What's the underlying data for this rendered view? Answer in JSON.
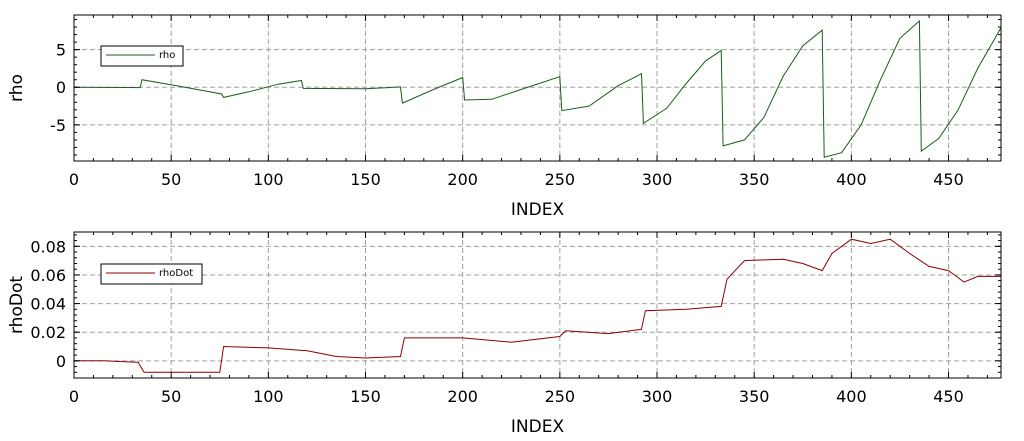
{
  "chart_data": [
    {
      "type": "line",
      "xlabel": "INDEX",
      "ylabel": "rho",
      "xlim": [
        0,
        477
      ],
      "ylim": [
        -9.8,
        9.6
      ],
      "xticks": [
        0,
        50,
        100,
        150,
        200,
        250,
        300,
        350,
        400,
        450
      ],
      "yticks": [
        -5,
        0,
        5
      ],
      "ytick_labels": [
        "-5",
        "0",
        "5"
      ],
      "grid": true,
      "legend_position": "top-left",
      "series": [
        {
          "name": "rho",
          "color": "#1a5c1a",
          "points": [
            [
              0,
              0.0
            ],
            [
              34,
              -0.05
            ],
            [
              35,
              1.0
            ],
            [
              55,
              0.1
            ],
            [
              76,
              -0.9
            ],
            [
              77,
              -1.35
            ],
            [
              90,
              -0.6
            ],
            [
              105,
              0.4
            ],
            [
              117,
              0.9
            ],
            [
              118,
              -0.15
            ],
            [
              150,
              -0.2
            ],
            [
              168,
              0.05
            ],
            [
              169,
              -2.1
            ],
            [
              185,
              -0.3
            ],
            [
              200,
              1.3
            ],
            [
              201,
              -1.7
            ],
            [
              215,
              -1.6
            ],
            [
              230,
              -0.3
            ],
            [
              250,
              1.4
            ],
            [
              251,
              -3.1
            ],
            [
              265,
              -2.5
            ],
            [
              280,
              0.2
            ],
            [
              292,
              1.8
            ],
            [
              293,
              -4.8
            ],
            [
              305,
              -2.8
            ],
            [
              315,
              0.5
            ],
            [
              325,
              3.5
            ],
            [
              333,
              4.9
            ],
            [
              334,
              -7.8
            ],
            [
              345,
              -7.0
            ],
            [
              355,
              -4.0
            ],
            [
              365,
              1.5
            ],
            [
              375,
              5.5
            ],
            [
              385,
              7.6
            ],
            [
              386,
              -9.3
            ],
            [
              395,
              -8.7
            ],
            [
              405,
              -5.0
            ],
            [
              415,
              1.0
            ],
            [
              425,
              6.5
            ],
            [
              435,
              8.8
            ],
            [
              436,
              -8.5
            ],
            [
              445,
              -6.8
            ],
            [
              455,
              -3.0
            ],
            [
              465,
              2.5
            ],
            [
              477,
              7.9
            ]
          ]
        }
      ]
    },
    {
      "type": "line",
      "xlabel": "INDEX",
      "ylabel": "rhoDot",
      "xlim": [
        0,
        477
      ],
      "ylim": [
        -0.012,
        0.09
      ],
      "xticks": [
        0,
        50,
        100,
        150,
        200,
        250,
        300,
        350,
        400,
        450
      ],
      "yticks": [
        0,
        0.02,
        0.04,
        0.06,
        0.08
      ],
      "ytick_labels": [
        "0",
        "0.02",
        "0.04",
        "0.06",
        "0.08"
      ],
      "grid": true,
      "legend_position": "top-left",
      "series": [
        {
          "name": "rhoDot",
          "color": "#8b0000",
          "points": [
            [
              0,
              0.0
            ],
            [
              15,
              0.0
            ],
            [
              33,
              -0.001
            ],
            [
              36,
              -0.008
            ],
            [
              55,
              -0.008
            ],
            [
              75,
              -0.008
            ],
            [
              77,
              0.01
            ],
            [
              100,
              0.009
            ],
            [
              120,
              0.007
            ],
            [
              135,
              0.003
            ],
            [
              150,
              0.002
            ],
            [
              168,
              0.003
            ],
            [
              170,
              0.016
            ],
            [
              200,
              0.016
            ],
            [
              225,
              0.013
            ],
            [
              250,
              0.017
            ],
            [
              253,
              0.021
            ],
            [
              275,
              0.019
            ],
            [
              292,
              0.022
            ],
            [
              294,
              0.035
            ],
            [
              315,
              0.036
            ],
            [
              333,
              0.038
            ],
            [
              336,
              0.057
            ],
            [
              345,
              0.07
            ],
            [
              365,
              0.071
            ],
            [
              375,
              0.068
            ],
            [
              385,
              0.063
            ],
            [
              390,
              0.075
            ],
            [
              400,
              0.085
            ],
            [
              410,
              0.082
            ],
            [
              420,
              0.085
            ],
            [
              430,
              0.075
            ],
            [
              440,
              0.066
            ],
            [
              450,
              0.063
            ],
            [
              458,
              0.055
            ],
            [
              465,
              0.059
            ],
            [
              477,
              0.059
            ]
          ]
        }
      ]
    }
  ]
}
